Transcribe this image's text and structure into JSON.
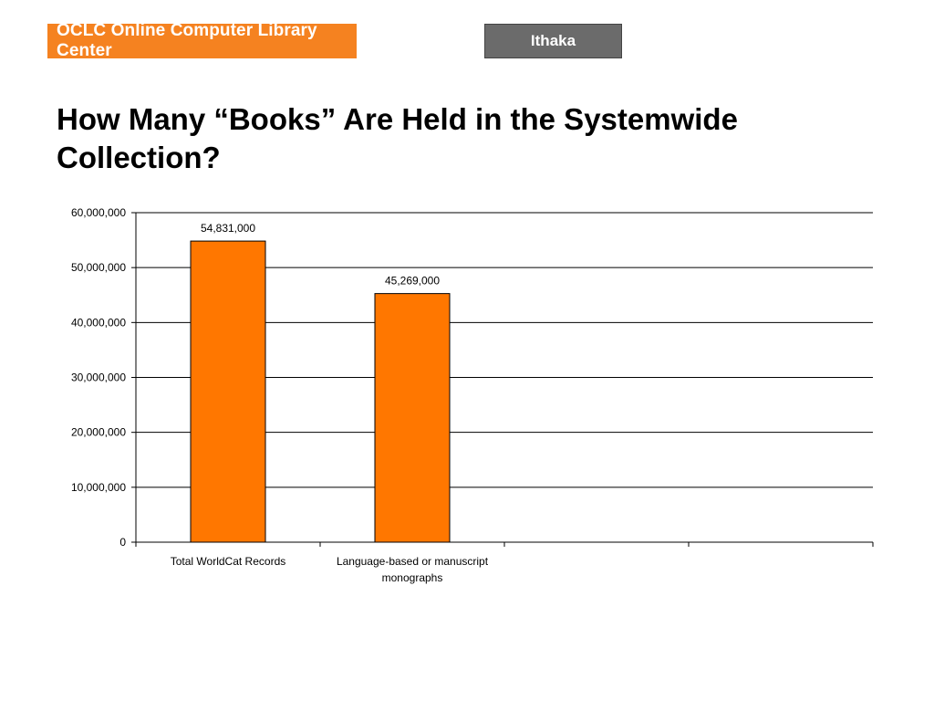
{
  "header": {
    "logo_text": "OCLC Online Computer Library Center",
    "partner_label": "Ithaka"
  },
  "slide": {
    "title": "How Many “Books” Are Held in the Systemwide Collection?"
  },
  "colors": {
    "brand_orange": "#f58220",
    "bar_fill": "#ff7700",
    "badge_gray": "#6b6b6b"
  },
  "chart_data": {
    "type": "bar",
    "categories": [
      [
        "Total WorldCat Records"
      ],
      [
        "Language-based or manuscript",
        "monographs"
      ],
      [
        ""
      ],
      [
        ""
      ]
    ],
    "values": [
      54831000,
      45269000,
      null,
      null
    ],
    "data_labels": [
      "54,831,000",
      "45,269,000",
      "",
      ""
    ],
    "ylim": [
      0,
      60000000
    ],
    "yticks": [
      0,
      10000000,
      20000000,
      30000000,
      40000000,
      50000000,
      60000000
    ],
    "ytick_labels": [
      "0",
      "10,000,000",
      "20,000,000",
      "30,000,000",
      "40,000,000",
      "50,000,000",
      "60,000,000"
    ],
    "grid": true,
    "legend": "none",
    "title": "",
    "xlabel": "",
    "ylabel": ""
  }
}
